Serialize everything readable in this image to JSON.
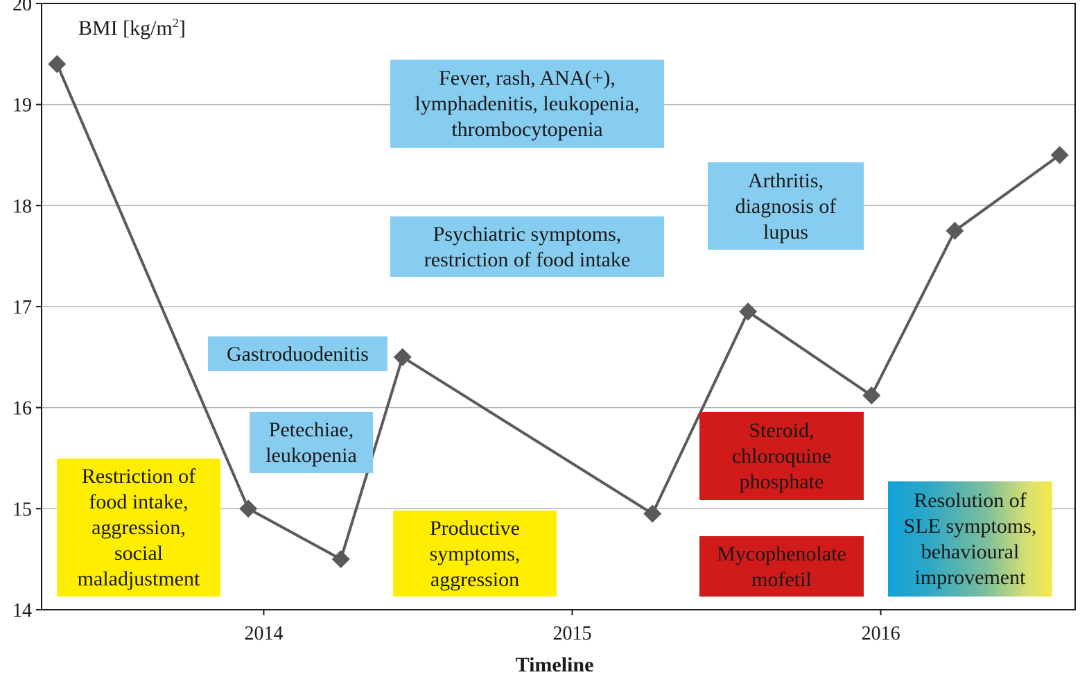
{
  "chart_data": {
    "type": "line",
    "title": "",
    "ylabel": "BMI [kg/m",
    "ylabel_sup": "2",
    "ylabel_close": "]",
    "xlabel": "Timeline",
    "ylim": [
      14,
      20
    ],
    "yticks": [
      "14",
      "15",
      "16",
      "17",
      "18",
      "19",
      "20"
    ],
    "xlim": [
      2013.28,
      2016.63
    ],
    "xticks": [
      {
        "value": 2014.0,
        "label": "2014"
      },
      {
        "value": 2015.0,
        "label": "2015"
      },
      {
        "value": 2016.0,
        "label": "2016"
      }
    ],
    "grid": true,
    "series": [
      {
        "name": "",
        "color": "#5a5a5a",
        "marker": "diamond",
        "x": [
          2013.33,
          2013.95,
          2014.25,
          2014.45,
          2015.26,
          2015.57,
          2015.97,
          2016.24,
          2016.58
        ],
        "values": [
          19.4,
          15.0,
          14.5,
          16.5,
          14.95,
          16.95,
          16.12,
          17.75,
          18.5
        ]
      }
    ]
  },
  "annotations": [
    {
      "id": "restriction-food-aggression",
      "color": "yellow",
      "text": "Restriction of\nfood intake,\naggression,\nsocial\nmaladjustment"
    },
    {
      "id": "gastroduodenitis",
      "color": "blue",
      "text": "Gastroduodenitis"
    },
    {
      "id": "petechiae-leukopenia",
      "color": "blue",
      "text": "Petechiae,\nleukopenia"
    },
    {
      "id": "fever-rash",
      "color": "blue",
      "text": "Fever, rash, ANA(+),\nlymphadenitis, leukopenia,\nthrombocytopenia"
    },
    {
      "id": "psychiatric-symptoms",
      "color": "blue",
      "text": "Psychiatric symptoms,\nrestriction of food intake"
    },
    {
      "id": "productive-symptoms",
      "color": "yellow",
      "text": "Productive\nsymptoms,\naggression"
    },
    {
      "id": "arthritis-lupus",
      "color": "blue",
      "text": "Arthritis,\ndiagnosis of\nlupus"
    },
    {
      "id": "steroid-chloroquine",
      "color": "red",
      "text": "Steroid,\nchloroquine\nphosphate"
    },
    {
      "id": "mycophenolate",
      "color": "red",
      "text": "Mycophenolate\nmofetil"
    },
    {
      "id": "resolution-sle",
      "color": "gradient",
      "text": "Resolution of\nSLE symptoms,\nbehavioural\nimprovement"
    }
  ]
}
